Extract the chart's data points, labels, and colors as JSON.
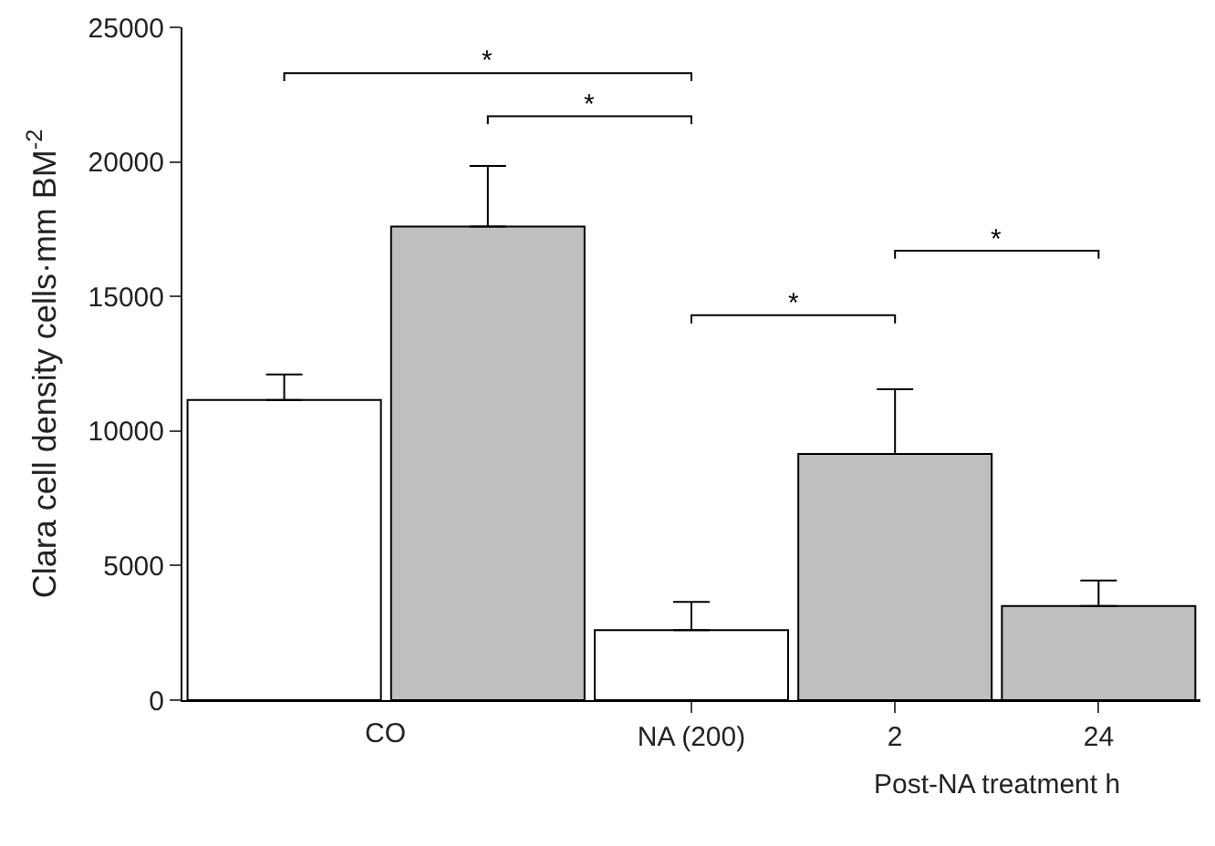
{
  "chart_data": {
    "type": "bar",
    "categories": [
      null,
      null,
      "NA (200)",
      "2",
      "24"
    ],
    "values": [
      11150,
      17600,
      2600,
      9150,
      3500
    ],
    "colors": [
      "#ffffff",
      "#bfbfbf",
      "#ffffff",
      "#bfbfbf",
      "#bfbfbf"
    ],
    "errors": [
      [
        11150,
        12100
      ],
      [
        17600,
        19850
      ],
      [
        2600,
        3650
      ],
      [
        9150,
        11550
      ],
      [
        3500,
        4450
      ]
    ],
    "ylabel": "Clara cell density cells·mm BM$^{-2}$",
    "xlabel": "Post-NA treatment h",
    "ylim": [
      0,
      25000
    ],
    "yticks": [
      0,
      5000,
      10000,
      15000,
      20000,
      25000
    ],
    "grid": false,
    "legend": false,
    "annotations": [
      "CO",
      "*",
      "*",
      "*",
      "*"
    ]
  }
}
